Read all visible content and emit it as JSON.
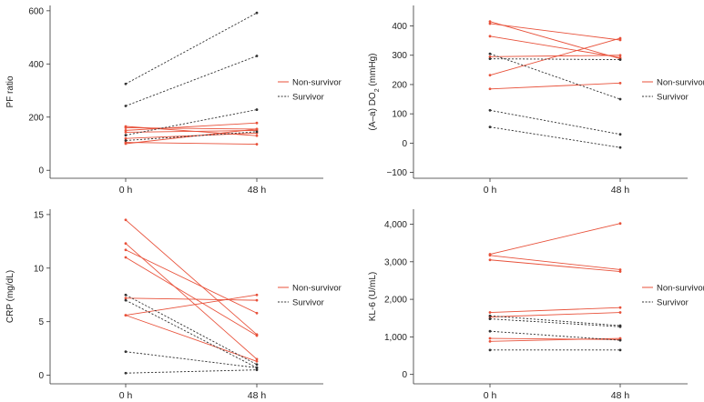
{
  "colors": {
    "non_survivor": "#e8513a",
    "survivor": "#333333",
    "axis": "#333333"
  },
  "chart_data": [
    {
      "type": "line",
      "id": "pf",
      "ylabel": "PF ratio",
      "ylabel_html": null,
      "categories": [
        "0 h",
        "48 h"
      ],
      "ylim": [
        -30,
        620
      ],
      "yticks": [
        0,
        200,
        400,
        600
      ],
      "ytick_labels": [
        "0",
        "200",
        "400",
        "600"
      ],
      "legend": [
        "Non-survivor",
        "Survivor"
      ],
      "legend_position": "right-middle",
      "series": [
        {
          "group": "Non-survivor",
          "values": [
            165,
            130
          ]
        },
        {
          "group": "Non-survivor",
          "values": [
            160,
            155
          ]
        },
        {
          "group": "Non-survivor",
          "values": [
            150,
            178
          ]
        },
        {
          "group": "Non-survivor",
          "values": [
            143,
            150
          ]
        },
        {
          "group": "Non-survivor",
          "values": [
            120,
            140
          ]
        },
        {
          "group": "Non-survivor",
          "values": [
            105,
            98
          ]
        },
        {
          "group": "Non-survivor",
          "values": [
            100,
            155
          ]
        },
        {
          "group": "Survivor",
          "values": [
            325,
            592
          ]
        },
        {
          "group": "Survivor",
          "values": [
            242,
            430
          ]
        },
        {
          "group": "Survivor",
          "values": [
            132,
            228
          ]
        },
        {
          "group": "Survivor",
          "values": [
            112,
            145
          ]
        }
      ]
    },
    {
      "type": "line",
      "id": "aado2",
      "ylabel": "(A–a) DO",
      "ylabel_sub": "2",
      "ylabel_unit": " (mmHg)",
      "categories": [
        "0 h",
        "48 h"
      ],
      "ylim": [
        -120,
        470
      ],
      "yticks": [
        -100,
        0,
        100,
        200,
        300,
        400
      ],
      "ytick_labels": [
        "−100",
        "0",
        "100",
        "200",
        "300",
        "400"
      ],
      "legend": [
        "Non-survivor",
        "Survivor"
      ],
      "legend_position": "right-middle",
      "series": [
        {
          "group": "Non-survivor",
          "values": [
            415,
            288
          ]
        },
        {
          "group": "Non-survivor",
          "values": [
            408,
            352
          ]
        },
        {
          "group": "Non-survivor",
          "values": [
            365,
            292
          ]
        },
        {
          "group": "Non-survivor",
          "values": [
            295,
            300
          ]
        },
        {
          "group": "Non-survivor",
          "values": [
            232,
            358
          ]
        },
        {
          "group": "Non-survivor",
          "values": [
            185,
            205
          ]
        },
        {
          "group": "Survivor",
          "values": [
            305,
            150
          ]
        },
        {
          "group": "Survivor",
          "values": [
            288,
            285
          ]
        },
        {
          "group": "Survivor",
          "values": [
            112,
            30
          ]
        },
        {
          "group": "Survivor",
          "values": [
            55,
            -15
          ]
        }
      ]
    },
    {
      "type": "line",
      "id": "crp",
      "ylabel": "CRP (mg/dL)",
      "categories": [
        "0 h",
        "48 h"
      ],
      "ylim": [
        -0.8,
        15.5
      ],
      "yticks": [
        0,
        5,
        10,
        15
      ],
      "ytick_labels": [
        "0",
        "5",
        "10",
        "15"
      ],
      "legend": [
        "Non-survivor",
        "Survivor"
      ],
      "legend_position": "right-middle",
      "series": [
        {
          "group": "Non-survivor",
          "values": [
            14.5,
            3.8
          ]
        },
        {
          "group": "Non-survivor",
          "values": [
            12.3,
            1.5
          ]
        },
        {
          "group": "Non-survivor",
          "values": [
            11.7,
            5.8
          ]
        },
        {
          "group": "Non-survivor",
          "values": [
            11.0,
            3.7
          ]
        },
        {
          "group": "Non-survivor",
          "values": [
            7.2,
            7.0
          ]
        },
        {
          "group": "Non-survivor",
          "values": [
            5.6,
            7.5
          ]
        },
        {
          "group": "Non-survivor",
          "values": [
            5.6,
            1.3
          ]
        },
        {
          "group": "Survivor",
          "values": [
            7.5,
            1.0
          ]
        },
        {
          "group": "Survivor",
          "values": [
            7.0,
            0.7
          ]
        },
        {
          "group": "Survivor",
          "values": [
            2.2,
            0.7
          ]
        },
        {
          "group": "Survivor",
          "values": [
            0.2,
            0.5
          ]
        }
      ]
    },
    {
      "type": "line",
      "id": "kl6",
      "ylabel": "KL-6 (U/mL)",
      "categories": [
        "0 h",
        "48 h"
      ],
      "ylim": [
        -250,
        4400
      ],
      "yticks": [
        0,
        1000,
        2000,
        3000,
        4000
      ],
      "ytick_labels": [
        "0",
        "1,000",
        "2,000",
        "3,000",
        "4,000"
      ],
      "legend": [
        "Non-survivor",
        "Survivor"
      ],
      "legend_position": "right-middle",
      "series": [
        {
          "group": "Non-survivor",
          "values": [
            3200,
            4020
          ]
        },
        {
          "group": "Non-survivor",
          "values": [
            3170,
            2790
          ]
        },
        {
          "group": "Non-survivor",
          "values": [
            3050,
            2740
          ]
        },
        {
          "group": "Non-survivor",
          "values": [
            1650,
            1780
          ]
        },
        {
          "group": "Non-survivor",
          "values": [
            1530,
            1650
          ]
        },
        {
          "group": "Non-survivor",
          "values": [
            960,
            930
          ]
        },
        {
          "group": "Non-survivor",
          "values": [
            880,
            960
          ]
        },
        {
          "group": "Survivor",
          "values": [
            1560,
            1300
          ]
        },
        {
          "group": "Survivor",
          "values": [
            1480,
            1270
          ]
        },
        {
          "group": "Survivor",
          "values": [
            1150,
            910
          ]
        },
        {
          "group": "Survivor",
          "values": [
            650,
            650
          ]
        }
      ]
    }
  ]
}
